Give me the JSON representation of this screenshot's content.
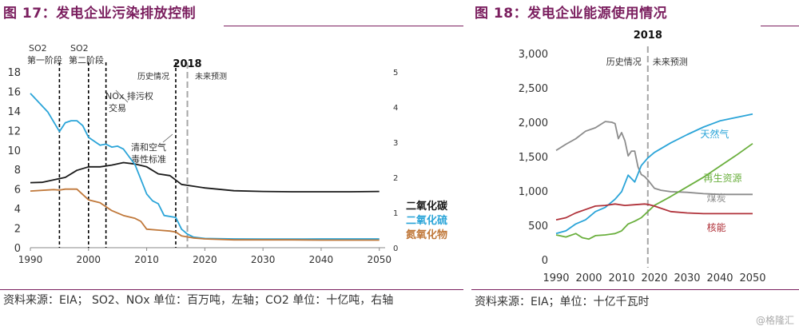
{
  "chart_data": [
    {
      "type": "line",
      "title": "图 17：发电企业污染排放控制",
      "x_ticks": [
        1990,
        2000,
        2010,
        2020,
        2030,
        2040,
        2050
      ],
      "xlim": [
        1990,
        2051
      ],
      "left_axis": {
        "ylim": [
          0,
          18
        ],
        "ticks": [
          0,
          2,
          4,
          6,
          8,
          10,
          12,
          14,
          16,
          18
        ]
      },
      "right_axis": {
        "ylim": [
          0,
          5
        ],
        "ticks": [
          0,
          1,
          2,
          3,
          4,
          5
        ]
      },
      "vlines": [
        {
          "x": 1995,
          "style": "dashed",
          "color": "#000000"
        },
        {
          "x": 2000,
          "style": "dashed",
          "color": "#000000"
        },
        {
          "x": 2003,
          "style": "dashed",
          "color": "#000000"
        },
        {
          "x": 2015,
          "style": "dashed",
          "color": "#000000"
        },
        {
          "x": 2017,
          "style": "dashed",
          "color": "#a6a6a6"
        }
      ],
      "marker_year_label": "2018",
      "annotations": {
        "so2_phase1_top": "SO2",
        "so2_phase1_bottom": "第一阶段",
        "so2_phase2_top": "SO2",
        "so2_phase2_bottom": "第二阶段",
        "nox_top": "NOx 排污权",
        "nox_bottom": "交易",
        "air_top": "清和空气",
        "air_bottom": "毒性标准",
        "history": "历史情况",
        "forecast": "未来预测"
      },
      "series": [
        {
          "name": "二氧化碳",
          "axis": "right",
          "color": "#1a1a1a",
          "x": [
            1990,
            1992,
            1994,
            1996,
            1998,
            2000,
            2002,
            2004,
            2006,
            2008,
            2010,
            2012,
            2014,
            2016,
            2018,
            2020,
            2025,
            2030,
            2035,
            2040,
            2045,
            2050
          ],
          "y": [
            1.85,
            1.86,
            1.93,
            2.0,
            2.2,
            2.3,
            2.3,
            2.35,
            2.42,
            2.38,
            2.3,
            2.1,
            2.05,
            1.8,
            1.75,
            1.7,
            1.62,
            1.6,
            1.59,
            1.59,
            1.59,
            1.6
          ]
        },
        {
          "name": "二氧化硫",
          "axis": "left",
          "color": "#2aa4d8",
          "x": [
            1990,
            1993,
            1995,
            1996,
            1997,
            1998,
            1999,
            2000,
            2002,
            2003,
            2004,
            2005,
            2006,
            2008,
            2010,
            2011,
            2012,
            2013,
            2015,
            2016,
            2017,
            2018,
            2020,
            2025,
            2030,
            2035,
            2040,
            2045,
            2050
          ],
          "y": [
            15.8,
            13.9,
            11.9,
            12.8,
            13.0,
            13.0,
            12.5,
            11.3,
            10.5,
            10.6,
            10.3,
            10.4,
            10.1,
            8.5,
            5.5,
            4.8,
            4.5,
            3.3,
            3.1,
            1.9,
            1.4,
            1.1,
            0.95,
            0.9,
            0.88,
            0.88,
            0.9,
            0.9,
            0.9
          ]
        },
        {
          "name": "氮氧化物",
          "axis": "left",
          "color": "#c0783a",
          "x": [
            1990,
            1994,
            1995,
            1996,
            1998,
            2000,
            2002,
            2004,
            2006,
            2008,
            2009,
            2010,
            2012,
            2014,
            2015,
            2016,
            2018,
            2020,
            2025,
            2030,
            2035,
            2040,
            2045,
            2050
          ],
          "y": [
            5.8,
            5.95,
            5.9,
            6.0,
            6.0,
            4.9,
            4.6,
            3.8,
            3.3,
            3.0,
            2.7,
            1.9,
            1.8,
            1.7,
            1.6,
            1.2,
            1.0,
            0.9,
            0.8,
            0.8,
            0.8,
            0.78,
            0.78,
            0.78
          ]
        }
      ],
      "source": "资料来源：EIA； SO2、NOx 单位：百万吨，左轴；CO2 单位：十亿吨，右轴"
    },
    {
      "type": "line",
      "title": "图 18：发电企业能源使用情况",
      "x_ticks": [
        1990,
        2000,
        2010,
        2020,
        2030,
        2040,
        2050
      ],
      "xlim": [
        1990,
        2050
      ],
      "ylim": [
        0,
        3000
      ],
      "y_ticks": [
        0,
        500,
        1000,
        1500,
        2000,
        2500,
        3000
      ],
      "y_tick_labels": [
        "0",
        "500",
        "1,000",
        "1,500",
        "2,000",
        "2,500",
        "3,000"
      ],
      "vlines": [
        {
          "x": 2018,
          "style": "dashed",
          "color": "#a6a6a6"
        }
      ],
      "marker_year_label": "2018",
      "annotations": {
        "history": "历史情况",
        "forecast": "未来预测"
      },
      "series": [
        {
          "name": "煤炭",
          "color": "#8c8c8c",
          "label_x": 2036,
          "label_y": 850,
          "x": [
            1990,
            1993,
            1996,
            1999,
            2002,
            2005,
            2007,
            2008,
            2009,
            2010,
            2011,
            2012,
            2013,
            2014,
            2015,
            2016,
            2017,
            2018,
            2020,
            2022,
            2025,
            2030,
            2035,
            2040,
            2045,
            2050
          ],
          "y": [
            1590,
            1680,
            1760,
            1870,
            1920,
            2010,
            2000,
            1980,
            1760,
            1850,
            1730,
            1510,
            1580,
            1580,
            1350,
            1240,
            1210,
            1160,
            1040,
            1010,
            990,
            980,
            960,
            950,
            950,
            950
          ]
        },
        {
          "name": "天然气",
          "color": "#2aa4d8",
          "label_x": 2034,
          "label_y": 1780,
          "x": [
            1990,
            1993,
            1996,
            1999,
            2000,
            2002,
            2005,
            2008,
            2010,
            2012,
            2014,
            2016,
            2018,
            2020,
            2025,
            2030,
            2035,
            2040,
            2045,
            2050
          ],
          "y": [
            380,
            420,
            520,
            580,
            620,
            700,
            760,
            880,
            990,
            1230,
            1130,
            1370,
            1480,
            1560,
            1700,
            1820,
            1930,
            2020,
            2070,
            2120
          ]
        },
        {
          "name": "再生资源",
          "color": "#6aaf3d",
          "label_x": 2035,
          "label_y": 1140,
          "x": [
            1990,
            1993,
            1996,
            1998,
            2000,
            2002,
            2005,
            2008,
            2010,
            2012,
            2014,
            2016,
            2018,
            2020,
            2025,
            2030,
            2035,
            2040,
            2045,
            2050
          ],
          "y": [
            360,
            330,
            380,
            320,
            300,
            350,
            360,
            380,
            420,
            520,
            560,
            610,
            700,
            790,
            920,
            1060,
            1200,
            1360,
            1520,
            1690
          ]
        },
        {
          "name": "核能",
          "color": "#b0323a",
          "label_x": 2036,
          "label_y": 420,
          "x": [
            1990,
            1993,
            1996,
            1999,
            2002,
            2005,
            2008,
            2011,
            2014,
            2017,
            2018,
            2020,
            2025,
            2030,
            2035,
            2040,
            2045,
            2050
          ],
          "y": [
            580,
            610,
            680,
            730,
            780,
            790,
            810,
            790,
            800,
            810,
            805,
            780,
            700,
            680,
            670,
            670,
            670,
            670
          ]
        }
      ],
      "source": "资料来源：EIA；单位：十亿千瓦时"
    }
  ],
  "watermark": "@格隆汇"
}
